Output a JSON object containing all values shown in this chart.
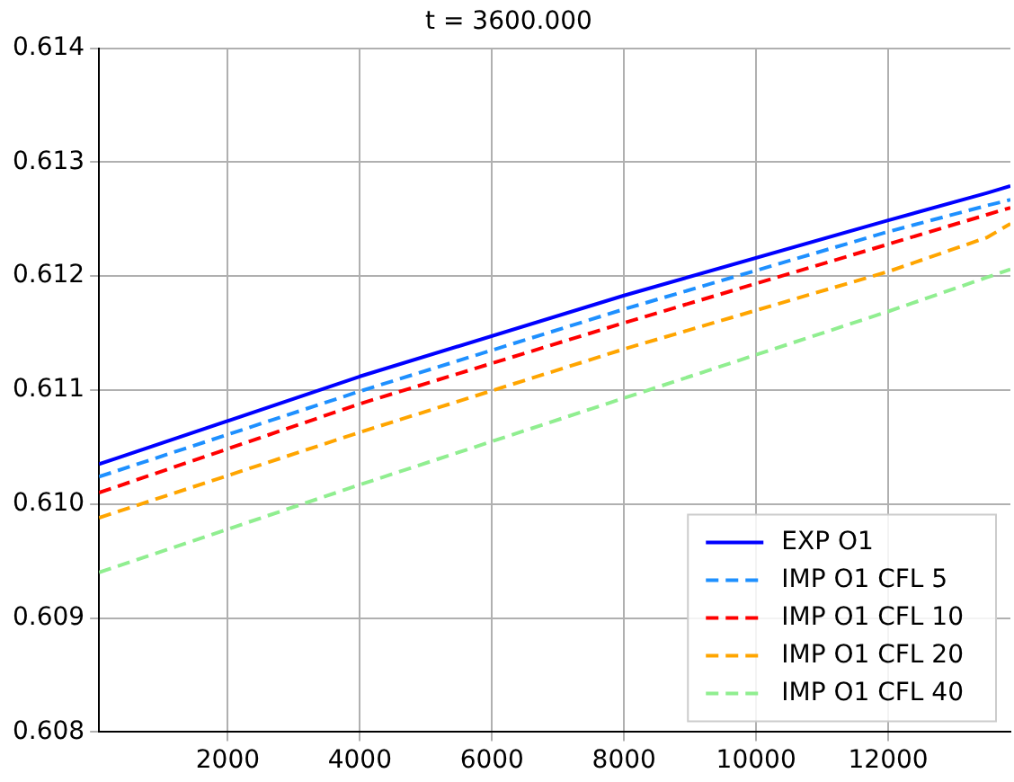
{
  "chart_data": {
    "type": "line",
    "title": "t = 3600.000",
    "x": [
      50,
      4000,
      8000,
      12000,
      13500,
      13850
    ],
    "xlim": [
      50,
      13850
    ],
    "xticks": [
      2000,
      4000,
      6000,
      8000,
      10000,
      12000
    ],
    "ylim": [
      0.608,
      0.614
    ],
    "yticks": [
      0.608,
      0.609,
      {
        "value": 0.61,
        "label": "0.610"
      },
      0.611,
      0.612,
      0.613,
      0.614
    ],
    "grid": true,
    "legend": "bottom right",
    "marker": "none",
    "series": [
      {
        "name": "EXP O1",
        "color": "#0000ff",
        "line_style": "solid",
        "values": [
          0.61035,
          0.61112,
          0.61183,
          0.61249,
          0.61273,
          0.61279
        ]
      },
      {
        "name": "IMP O1 CFL 5",
        "color": "#1e90ff",
        "line_style": "dashed",
        "values": [
          0.61024,
          0.61099,
          0.61171,
          0.61239,
          0.61262,
          0.61267
        ]
      },
      {
        "name": "IMP O1 CFL 10",
        "color": "#ff0000",
        "line_style": "dashed",
        "values": [
          0.6101,
          0.61088,
          0.61159,
          0.61228,
          0.61254,
          0.6126
        ]
      },
      {
        "name": "IMP O1 CFL 20",
        "color": "#ffa500",
        "line_style": "dashed",
        "values": [
          0.60988,
          0.61063,
          0.61136,
          0.61204,
          0.61234,
          0.61246
        ]
      },
      {
        "name": "IMP O1 CFL 40",
        "color": "#90ee90",
        "line_style": "dashed",
        "values": [
          0.6094,
          0.61017,
          0.61093,
          0.61169,
          0.61199,
          0.61206
        ]
      }
    ]
  }
}
